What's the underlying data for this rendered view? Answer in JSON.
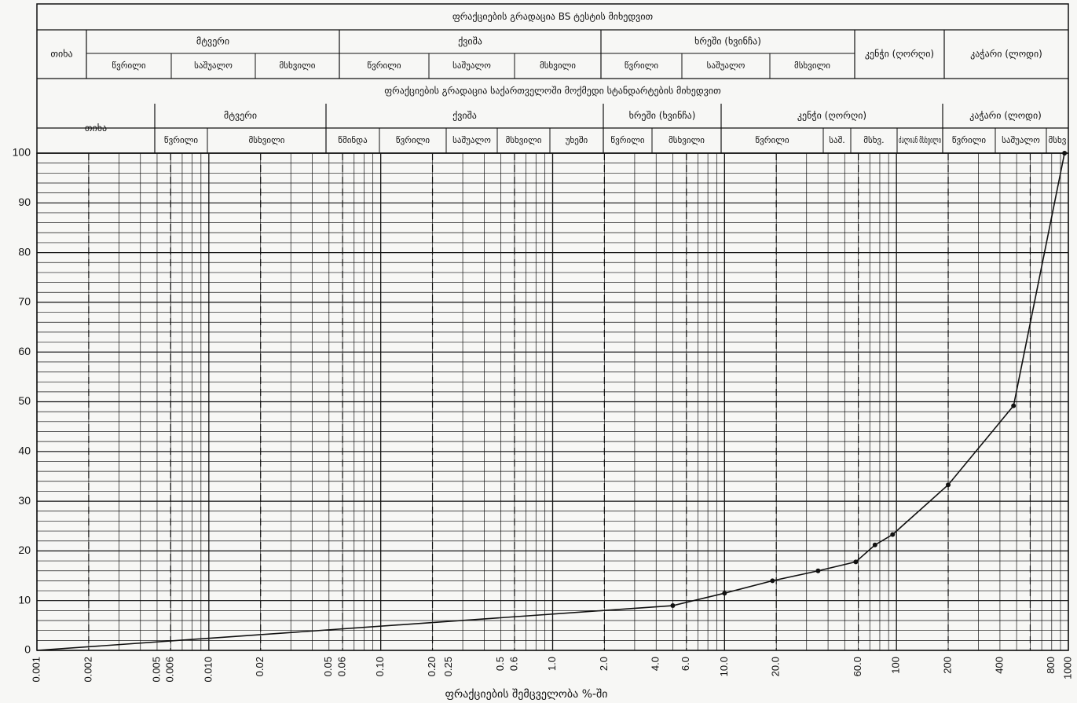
{
  "header": {
    "bs_title": "ფრაქციების გრადაცია BS ტესტის მიხედვით",
    "bs_groups": [
      {
        "label": "თიხა",
        "subs": []
      },
      {
        "label": "მტვერი",
        "subs": [
          "წვრილი",
          "საშუალო",
          "მსხვილი"
        ]
      },
      {
        "label": "ქვიშა",
        "subs": [
          "წვრილი",
          "საშუალო",
          "მსხვილი"
        ]
      },
      {
        "label": "ხრეში (ხვინჩა)",
        "subs": [
          "წვრილი",
          "საშუალო",
          "მსხვილი"
        ]
      },
      {
        "label": "კენჭი (ღორღი)",
        "subs": []
      },
      {
        "label": "კაჭარი (ლოდი)",
        "subs": []
      }
    ],
    "ge_title": "ფრაქციების გრადაცია საქართველოში მოქმედი სტანდარტების მიხედვით",
    "ge_groups": [
      {
        "label": "თიხა",
        "subs": []
      },
      {
        "label": "მტვერი",
        "subs": [
          "წვრილი",
          "მსხვილი"
        ]
      },
      {
        "label": "ქვიშა",
        "subs": [
          "წმინდა",
          "წვრილი",
          "საშუალო",
          "მსხვილი",
          "უხეში"
        ]
      },
      {
        "label": "ხრეში (ხვინჩა)",
        "subs": [
          "წვრილი",
          "მსხვილი"
        ]
      },
      {
        "label": "კენჭი (ღორღი)",
        "subs": [
          "წვრილი",
          "საშ.",
          "მსხვ.",
          "ძალიან მსხვილი"
        ]
      },
      {
        "label": "კაჭარი (ლოდი)",
        "subs": [
          "წვრილი",
          "საშუალო",
          "მსხვ"
        ]
      }
    ]
  },
  "chart_data": {
    "type": "line",
    "x_scale": "log",
    "xlim": [
      0.001,
      1000
    ],
    "ylim": [
      0,
      100
    ],
    "y_ticks": [
      0,
      10,
      20,
      30,
      40,
      50,
      60,
      70,
      80,
      90,
      100
    ],
    "x_tick_labels": [
      "0.001",
      "0.002",
      "0.005",
      "0.006",
      "0.010",
      "0.02",
      "0.05",
      "0.06",
      "0.10",
      "0.20",
      "0.25",
      "0.5",
      "0.6",
      "1.0",
      "2.0",
      "4.0",
      "6.0",
      "10.0",
      "20.0",
      "60.0",
      "100",
      "200",
      "400",
      "800",
      "1000"
    ],
    "x_tick_values": [
      0.001,
      0.002,
      0.005,
      0.006,
      0.01,
      0.02,
      0.05,
      0.06,
      0.1,
      0.2,
      0.25,
      0.5,
      0.6,
      1.0,
      2.0,
      4.0,
      6.0,
      10.0,
      20.0,
      60.0,
      100,
      200,
      400,
      800,
      1000
    ],
    "xlabel": "ფრაქციების შემცველობა %-ში",
    "ylabel": "",
    "grid": true,
    "series": [
      {
        "x": [
          0.001,
          5.0,
          10.0,
          19.0,
          35.0,
          58.0,
          75.0,
          95.0,
          200,
          480,
          950
        ],
        "y": [
          0,
          9,
          11.5,
          14,
          16,
          17.8,
          21.2,
          23.3,
          33.3,
          49.2,
          100
        ],
        "markers": [
          false,
          true,
          true,
          true,
          true,
          true,
          true,
          true,
          true,
          true,
          true
        ]
      }
    ]
  }
}
